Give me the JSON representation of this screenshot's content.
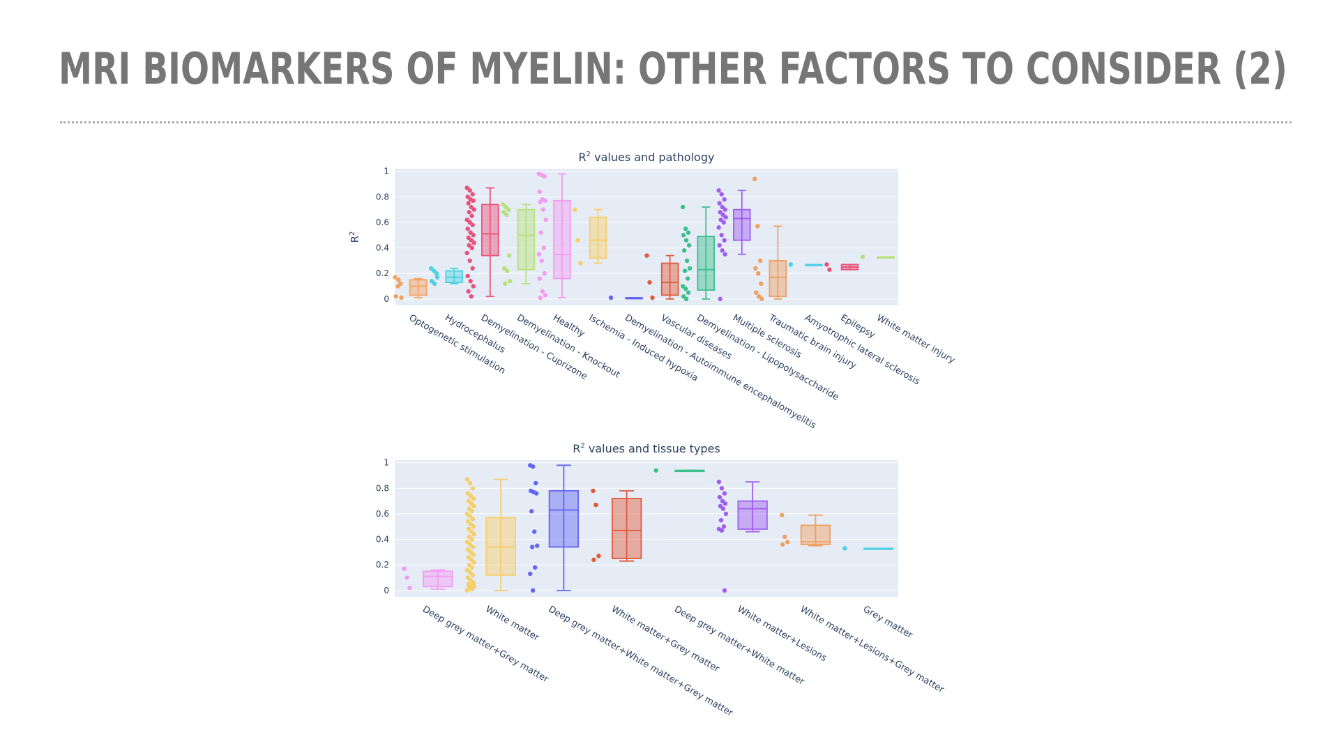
{
  "slide": {
    "title": "MRI BIOMARKERS OF MYELIN: OTHER FACTORS TO CONSIDER (2)"
  },
  "chart_data": [
    {
      "type": "box",
      "title": "R² values and pathology",
      "title_main": "R",
      "title_sup": "2",
      "title_rest": " values and pathology",
      "xlabel": "",
      "ylabel": "R²",
      "ylabel_main": "R",
      "ylabel_sup": "2",
      "ylim": [
        -0.05,
        1.02
      ],
      "yticks": [
        0,
        0.2,
        0.4,
        0.6,
        0.8,
        1
      ],
      "ytick_labels": [
        "0",
        "0.2",
        "0.4",
        "0.6",
        "0.8",
        "1"
      ],
      "grid": true,
      "plot_background": "#e5ecf6",
      "categories": [
        "Optogenetic stimulation",
        "Hydrocephalus",
        "Demyelination - Cuprizone",
        "Demyelination - Knockout",
        "Healthy",
        "Ischemia - Induced hypoxia",
        "Demyelination - Autoimmune encephalomyelitis",
        "Vascular diseases",
        "Demyelination - Lipopolysaccharide",
        "Multiple sclerosis",
        "Traumatic brain injury",
        "Amyotrophic lateral sclerosis",
        "Epilepsy",
        "White matter injury"
      ],
      "series": [
        {
          "category": "Optogenetic stimulation",
          "color": "#f4a261",
          "min": 0.01,
          "q1": 0.03,
          "median": 0.1,
          "q3": 0.15,
          "max": 0.16,
          "points": [
            0.17,
            0.1,
            0.12,
            0.02,
            0.15,
            0.01
          ]
        },
        {
          "category": "Hydrocephalus",
          "color": "#4dd0e1",
          "min": 0.12,
          "q1": 0.13,
          "median": 0.17,
          "q3": 0.22,
          "max": 0.24,
          "points": [
            0.24,
            0.22,
            0.2,
            0.14,
            0.12,
            0.17
          ]
        },
        {
          "category": "Demyelination - Cuprizone",
          "color": "#e8537a",
          "min": 0.02,
          "q1": 0.34,
          "median": 0.51,
          "q3": 0.74,
          "max": 0.87,
          "points": [
            0.87,
            0.85,
            0.82,
            0.8,
            0.78,
            0.77,
            0.75,
            0.72,
            0.7,
            0.68,
            0.65,
            0.62,
            0.6,
            0.58,
            0.55,
            0.52,
            0.5,
            0.48,
            0.46,
            0.44,
            0.42,
            0.4,
            0.36,
            0.3,
            0.24,
            0.18,
            0.14,
            0.1,
            0.06,
            0.02
          ]
        },
        {
          "category": "Demyelination - Knockout",
          "color": "#b7e27a",
          "min": 0.12,
          "q1": 0.23,
          "median": 0.5,
          "q3": 0.7,
          "max": 0.74,
          "points": [
            0.74,
            0.72,
            0.7,
            0.68,
            0.66,
            0.34,
            0.24,
            0.22,
            0.14,
            0.12
          ]
        },
        {
          "category": "Healthy",
          "color": "#f29cf0",
          "min": 0.01,
          "q1": 0.16,
          "median": 0.35,
          "q3": 0.77,
          "max": 0.98,
          "points": [
            0.98,
            0.97,
            0.96,
            0.84,
            0.78,
            0.77,
            0.76,
            0.7,
            0.62,
            0.52,
            0.4,
            0.35,
            0.3,
            0.2,
            0.16,
            0.06,
            0.03,
            0.01
          ]
        },
        {
          "category": "Ischemia - Induced hypoxia",
          "color": "#f6cf68",
          "min": 0.28,
          "q1": 0.32,
          "median": 0.46,
          "q3": 0.64,
          "max": 0.7,
          "points": [
            0.7,
            0.46,
            0.28
          ]
        },
        {
          "category": "Demyelination - Autoimmune encephalomyelitis",
          "color": "#6366f1",
          "min": 0.01,
          "q1": 0.01,
          "median": 0.01,
          "q3": 0.01,
          "max": 0.01,
          "points": [
            0.01
          ]
        },
        {
          "category": "Vascular diseases",
          "color": "#e05a3a",
          "min": 0.0,
          "q1": 0.03,
          "median": 0.13,
          "q3": 0.28,
          "max": 0.34,
          "points": [
            0.34,
            0.13,
            0.01
          ]
        },
        {
          "category": "Demyelination - Lipopolysaccharide",
          "color": "#3dbf8c",
          "min": 0.0,
          "q1": 0.07,
          "median": 0.23,
          "q3": 0.49,
          "max": 0.72,
          "points": [
            0.72,
            0.55,
            0.52,
            0.5,
            0.46,
            0.42,
            0.38,
            0.3,
            0.24,
            0.22,
            0.16,
            0.1,
            0.08,
            0.05,
            0.02,
            0.0
          ]
        },
        {
          "category": "Multiple sclerosis",
          "color": "#a05ef0",
          "min": 0.35,
          "q1": 0.46,
          "median": 0.63,
          "q3": 0.7,
          "max": 0.85,
          "points": [
            0.85,
            0.82,
            0.78,
            0.75,
            0.72,
            0.7,
            0.68,
            0.66,
            0.64,
            0.62,
            0.6,
            0.56,
            0.5,
            0.46,
            0.42,
            0.38,
            0.35,
            0.0
          ]
        },
        {
          "category": "Traumatic brain injury",
          "color": "#f0a060",
          "min": 0.0,
          "q1": 0.02,
          "median": 0.17,
          "q3": 0.3,
          "max": 0.57,
          "points": [
            0.94,
            0.57,
            0.3,
            0.24,
            0.2,
            0.12,
            0.05,
            0.02,
            0.0
          ]
        },
        {
          "category": "Amyotrophic lateral sclerosis",
          "color": "#4dd0e1",
          "min": 0.27,
          "q1": 0.27,
          "median": 0.27,
          "q3": 0.27,
          "max": 0.27,
          "points": [
            0.27
          ]
        },
        {
          "category": "Epilepsy",
          "color": "#e8537a",
          "min": 0.23,
          "q1": 0.23,
          "median": 0.25,
          "q3": 0.27,
          "max": 0.27,
          "points": [
            0.27,
            0.23
          ]
        },
        {
          "category": "White matter injury",
          "color": "#b7e27a",
          "min": 0.33,
          "q1": 0.33,
          "median": 0.33,
          "q3": 0.33,
          "max": 0.33,
          "points": [
            0.33
          ]
        }
      ]
    },
    {
      "type": "box",
      "title": "R² values and tissue types",
      "title_main": "R",
      "title_sup": "2",
      "title_rest": " values and tissue types",
      "xlabel": "",
      "ylabel": "",
      "ylim": [
        -0.05,
        1.02
      ],
      "yticks": [
        0,
        0.2,
        0.4,
        0.6,
        0.8,
        1
      ],
      "ytick_labels": [
        "0",
        "0.2",
        "0.4",
        "0.6",
        "0.8",
        "1"
      ],
      "grid": true,
      "plot_background": "#e5ecf6",
      "categories": [
        "Deep grey matter+Grey matter",
        "White matter",
        "Deep grey matter+White matter+Grey matter",
        "White matter+Grey matter",
        "Deep grey matter+White matter",
        "White matter+Lesions",
        "White matter+Lesions+Grey matter",
        "Grey matter"
      ],
      "series": [
        {
          "category": "Deep grey matter+Grey matter",
          "color": "#f29cf0",
          "min": 0.01,
          "q1": 0.03,
          "median": 0.11,
          "q3": 0.15,
          "max": 0.16,
          "points": [
            0.17,
            0.1,
            0.02
          ]
        },
        {
          "category": "White matter",
          "color": "#f6cf68",
          "min": 0.0,
          "q1": 0.12,
          "median": 0.34,
          "q3": 0.57,
          "max": 0.87,
          "points": [
            0.87,
            0.84,
            0.8,
            0.76,
            0.74,
            0.72,
            0.7,
            0.68,
            0.66,
            0.64,
            0.62,
            0.6,
            0.58,
            0.56,
            0.54,
            0.52,
            0.5,
            0.48,
            0.46,
            0.44,
            0.42,
            0.4,
            0.38,
            0.36,
            0.34,
            0.32,
            0.3,
            0.28,
            0.26,
            0.24,
            0.22,
            0.2,
            0.18,
            0.16,
            0.14,
            0.12,
            0.1,
            0.08,
            0.06,
            0.05,
            0.04,
            0.03,
            0.02,
            0.01,
            0.0
          ]
        },
        {
          "category": "Deep grey matter+White matter+Grey matter",
          "color": "#6366f1",
          "min": 0.0,
          "q1": 0.34,
          "median": 0.63,
          "q3": 0.78,
          "max": 0.98,
          "points": [
            0.98,
            0.97,
            0.84,
            0.78,
            0.77,
            0.76,
            0.62,
            0.46,
            0.35,
            0.34,
            0.18,
            0.13,
            0.0
          ]
        },
        {
          "category": "White matter+Grey matter",
          "color": "#e05a3a",
          "min": 0.23,
          "q1": 0.25,
          "median": 0.47,
          "q3": 0.72,
          "max": 0.78,
          "points": [
            0.78,
            0.67,
            0.27,
            0.24
          ]
        },
        {
          "category": "Deep grey matter+White matter",
          "color": "#3dbf8c",
          "min": 0.94,
          "q1": 0.94,
          "median": 0.94,
          "q3": 0.94,
          "max": 0.94,
          "points": [
            0.94
          ]
        },
        {
          "category": "White matter+Lesions",
          "color": "#a05ef0",
          "min": 0.46,
          "q1": 0.48,
          "median": 0.64,
          "q3": 0.7,
          "max": 0.85,
          "points": [
            0.85,
            0.8,
            0.76,
            0.73,
            0.7,
            0.68,
            0.66,
            0.64,
            0.6,
            0.55,
            0.5,
            0.48,
            0.47,
            0.0
          ]
        },
        {
          "category": "White matter+Lesions+Grey matter",
          "color": "#f0a060",
          "min": 0.35,
          "q1": 0.36,
          "median": 0.38,
          "q3": 0.51,
          "max": 0.59,
          "points": [
            0.59,
            0.42,
            0.38,
            0.36
          ]
        },
        {
          "category": "Grey matter",
          "color": "#4dd0e1",
          "min": 0.33,
          "q1": 0.33,
          "median": 0.33,
          "q3": 0.33,
          "max": 0.33,
          "points": [
            0.33
          ]
        }
      ]
    }
  ]
}
